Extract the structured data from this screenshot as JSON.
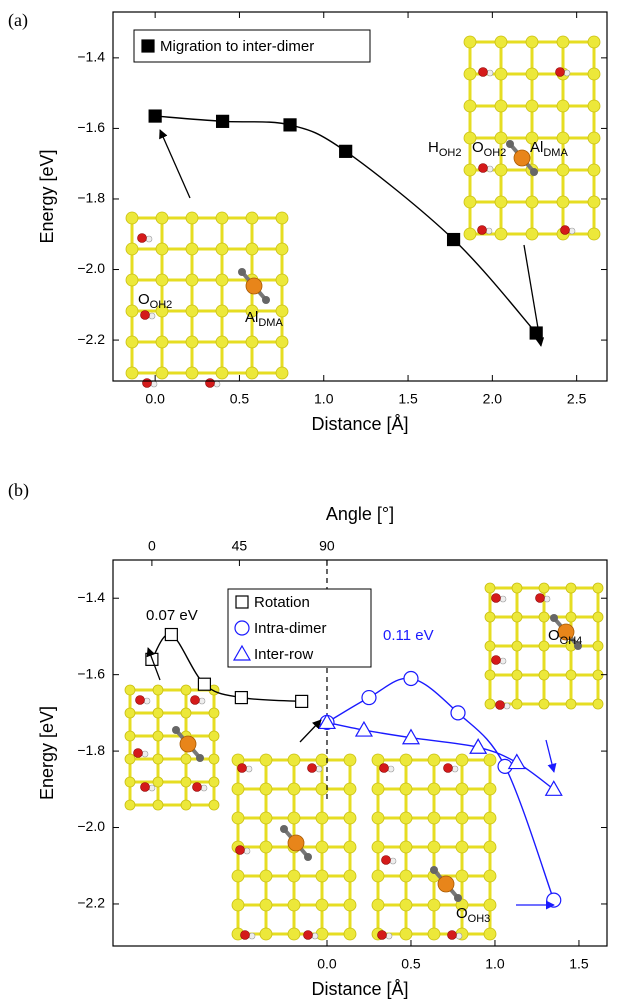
{
  "chart_data": [
    {
      "type": "scatter",
      "panel_label": "(a)",
      "xlabel": "Distance [Å]",
      "ylabel": "Energy [eV]",
      "xlim": [
        -0.25,
        2.68
      ],
      "ylim": [
        -2.316,
        -1.27
      ],
      "xticks": [
        {
          "value": 0,
          "label": "0.0"
        },
        0.5,
        {
          "value": 1,
          "label": "1.0"
        },
        1.5,
        {
          "value": 2,
          "label": "2.0"
        },
        2.5
      ],
      "yticks": [
        {
          "value": -1.4,
          "label": "−1.4"
        },
        {
          "value": -1.6,
          "label": "−1.6"
        },
        {
          "value": -1.8,
          "label": "−1.8"
        },
        {
          "value": -2,
          "label": "−2.0"
        },
        {
          "value": -2.2,
          "label": "−2.2"
        }
      ],
      "grid": false,
      "legend": "upper left",
      "series": [
        {
          "name": "Migration to inter-dimer",
          "color": "#000000",
          "marker": "square",
          "filled": true,
          "x": [
            0,
            0.4,
            0.8,
            1.13,
            1.77,
            2.26
          ],
          "values": [
            -1.565,
            -1.58,
            -1.59,
            -1.665,
            -1.915,
            -2.18
          ]
        }
      ],
      "annotations": [
        {
          "text": "O",
          "sub": "OH2",
          "color": "#000000"
        },
        {
          "text": "Al",
          "sub": "DMA",
          "color": "#000000"
        },
        {
          "text": "H",
          "sub": "OH2",
          "color": "#000000"
        },
        {
          "text": "O",
          "sub": "OH2",
          "color": "#000000"
        },
        {
          "text": "Al",
          "sub": "DMA",
          "color": "#000000"
        }
      ]
    },
    {
      "type": "scatter",
      "panel_label": "(b)",
      "xlabel": "Distance [Å]",
      "ylabel": "Energy [eV]",
      "x2label": "Angle [°]",
      "xlim": [
        -1.274,
        1.667
      ],
      "ylim": [
        -2.31,
        -1.3
      ],
      "x2lim": [
        -20,
        234
      ],
      "xticks": [
        {
          "value": 0,
          "label": "0.0"
        },
        0.5,
        {
          "value": 1,
          "label": "1.0"
        },
        1.5
      ],
      "x2ticks": [
        0,
        45,
        90
      ],
      "yticks": [
        {
          "value": -1.4,
          "label": "−1.4"
        },
        {
          "value": -1.6,
          "label": "−1.6"
        },
        {
          "value": -1.8,
          "label": "−1.8"
        },
        {
          "value": -2,
          "label": "−2.0"
        },
        {
          "value": -2.2,
          "label": "−2.2"
        }
      ],
      "vlines": [
        0
      ],
      "grid": false,
      "legend": "upper center",
      "series": [
        {
          "name": "Rotation",
          "color": "#000000",
          "marker": "square",
          "filled": false,
          "axis": "x2",
          "x": [
            0,
            10,
            27,
            46,
            77
          ],
          "values": [
            -1.56,
            -1.495,
            -1.625,
            -1.66,
            -1.67
          ]
        },
        {
          "name": "Intra-dimer",
          "color": "#1a1aff",
          "marker": "circle",
          "filled": false,
          "x": [
            0,
            0.25,
            0.5,
            0.78,
            1.06,
            1.35
          ],
          "values": [
            -1.725,
            -1.66,
            -1.61,
            -1.7,
            -1.84,
            -2.19
          ]
        },
        {
          "name": "Inter-row",
          "color": "#1a1aff",
          "marker": "triangle",
          "filled": false,
          "x": [
            0,
            0.22,
            0.5,
            0.9,
            1.13,
            1.35
          ],
          "values": [
            -1.725,
            -1.745,
            -1.765,
            -1.79,
            -1.83,
            -1.9
          ]
        }
      ],
      "annotations": [
        {
          "text": "0.07 eV",
          "color": "#000000"
        },
        {
          "text": "0.11 eV",
          "color": "#1a1aff"
        },
        {
          "text": "O",
          "sub": "OH4",
          "color": "#000000"
        },
        {
          "text": "O",
          "sub": "OH3",
          "color": "#000000"
        }
      ]
    }
  ]
}
